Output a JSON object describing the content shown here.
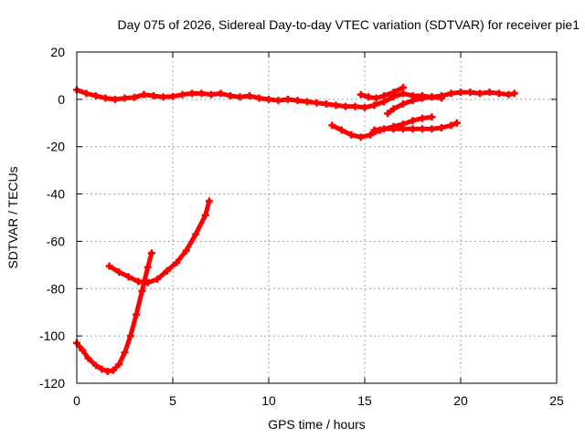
{
  "chart_data": {
    "type": "scatter",
    "title": "Day 075 of 2026, Sidereal Day-to-day VTEC variation (SDTVAR) for receiver pie1",
    "xlabel": "GPS time / hours",
    "ylabel": "SDTVAR / TECUs",
    "xlim": [
      0,
      25
    ],
    "ylim": [
      -120,
      20
    ],
    "xticks": [
      0,
      5,
      10,
      15,
      20,
      25
    ],
    "yticks": [
      -120,
      -100,
      -80,
      -60,
      -40,
      -20,
      0,
      20
    ],
    "grid": true,
    "legend": "none",
    "color": "#ff0000",
    "series": [
      {
        "points": [
          [
            0.0,
            4.0
          ],
          [
            0.5,
            2.5
          ],
          [
            1.0,
            1.5
          ],
          [
            1.5,
            0.5
          ],
          [
            2.0,
            0.0
          ],
          [
            2.5,
            0.5
          ],
          [
            3.0,
            0.8
          ],
          [
            3.5,
            2.0
          ],
          [
            4.0,
            1.5
          ],
          [
            4.5,
            1.0
          ],
          [
            5.0,
            1.2
          ],
          [
            5.5,
            2.0
          ],
          [
            6.0,
            2.5
          ],
          [
            6.5,
            2.5
          ],
          [
            7.0,
            2.0
          ],
          [
            7.5,
            2.5
          ],
          [
            8.0,
            1.5
          ],
          [
            8.5,
            1.0
          ],
          [
            9.0,
            1.5
          ],
          [
            9.5,
            0.5
          ],
          [
            10.0,
            0.0
          ],
          [
            10.5,
            -0.5
          ],
          [
            11.0,
            0.0
          ],
          [
            11.5,
            -0.5
          ],
          [
            12.0,
            -1.0
          ],
          [
            12.5,
            -1.5
          ],
          [
            13.0,
            -2.0
          ],
          [
            13.5,
            -2.5
          ],
          [
            14.0,
            -3.0
          ],
          [
            14.5,
            -3.0
          ],
          [
            15.0,
            -3.5
          ],
          [
            15.5,
            -2.5
          ],
          [
            16.0,
            -1.0
          ],
          [
            16.5,
            1.0
          ],
          [
            17.0,
            2.5
          ],
          [
            17.5,
            1.5
          ],
          [
            18.0,
            1.5
          ],
          [
            18.5,
            1.0
          ],
          [
            19.0,
            1.5
          ],
          [
            19.5,
            2.5
          ],
          [
            20.0,
            3.0
          ],
          [
            20.5,
            3.0
          ],
          [
            21.0,
            2.5
          ],
          [
            21.5,
            3.0
          ],
          [
            22.0,
            2.5
          ],
          [
            22.5,
            2.0
          ],
          [
            22.8,
            2.5
          ]
        ]
      },
      {
        "points": [
          [
            14.8,
            2.0
          ],
          [
            15.2,
            1.0
          ],
          [
            15.6,
            0.5
          ],
          [
            16.0,
            1.5
          ],
          [
            16.5,
            3.0
          ],
          [
            17.0,
            5.0
          ]
        ]
      },
      {
        "points": [
          [
            16.2,
            -6.0
          ],
          [
            16.5,
            -4.0
          ],
          [
            17.0,
            -2.0
          ],
          [
            17.5,
            -0.5
          ],
          [
            18.0,
            0.5
          ],
          [
            18.5,
            1.0
          ],
          [
            19.0,
            0.5
          ]
        ]
      },
      {
        "points": [
          [
            13.3,
            -11.0
          ],
          [
            13.8,
            -13.0
          ],
          [
            14.3,
            -15.0
          ],
          [
            14.8,
            -16.0
          ],
          [
            15.3,
            -15.0
          ],
          [
            15.8,
            -13.0
          ],
          [
            16.5,
            -11.5
          ],
          [
            17.0,
            -10.5
          ],
          [
            17.5,
            -9.0
          ],
          [
            18.0,
            -8.0
          ],
          [
            18.5,
            -7.5
          ]
        ]
      },
      {
        "points": [
          [
            15.5,
            -13.0
          ],
          [
            16.0,
            -12.5
          ],
          [
            16.5,
            -12.5
          ],
          [
            17.0,
            -12.5
          ],
          [
            17.5,
            -12.5
          ],
          [
            18.0,
            -12.5
          ],
          [
            18.5,
            -12.5
          ],
          [
            19.0,
            -12.0
          ],
          [
            19.5,
            -11.0
          ],
          [
            19.8,
            -10.0
          ]
        ]
      },
      {
        "points": [
          [
            0.0,
            -103.0
          ],
          [
            0.3,
            -106.0
          ],
          [
            0.6,
            -109.5
          ],
          [
            1.0,
            -112.5
          ],
          [
            1.3,
            -114.0
          ],
          [
            1.6,
            -115.0
          ],
          [
            1.9,
            -114.5
          ],
          [
            2.2,
            -112.0
          ],
          [
            2.5,
            -107.0
          ],
          [
            2.8,
            -100.0
          ],
          [
            3.1,
            -91.0
          ],
          [
            3.4,
            -81.0
          ],
          [
            3.7,
            -71.0
          ],
          [
            3.9,
            -65.0
          ]
        ]
      },
      {
        "points": [
          [
            1.7,
            -70.5
          ],
          [
            2.2,
            -73.0
          ],
          [
            2.7,
            -75.0
          ],
          [
            3.2,
            -77.0
          ],
          [
            3.7,
            -77.5
          ],
          [
            4.2,
            -76.0
          ],
          [
            4.7,
            -72.5
          ],
          [
            5.2,
            -69.0
          ],
          [
            5.7,
            -64.0
          ],
          [
            6.2,
            -57.0
          ],
          [
            6.7,
            -49.0
          ],
          [
            6.9,
            -43.0
          ]
        ]
      }
    ]
  }
}
